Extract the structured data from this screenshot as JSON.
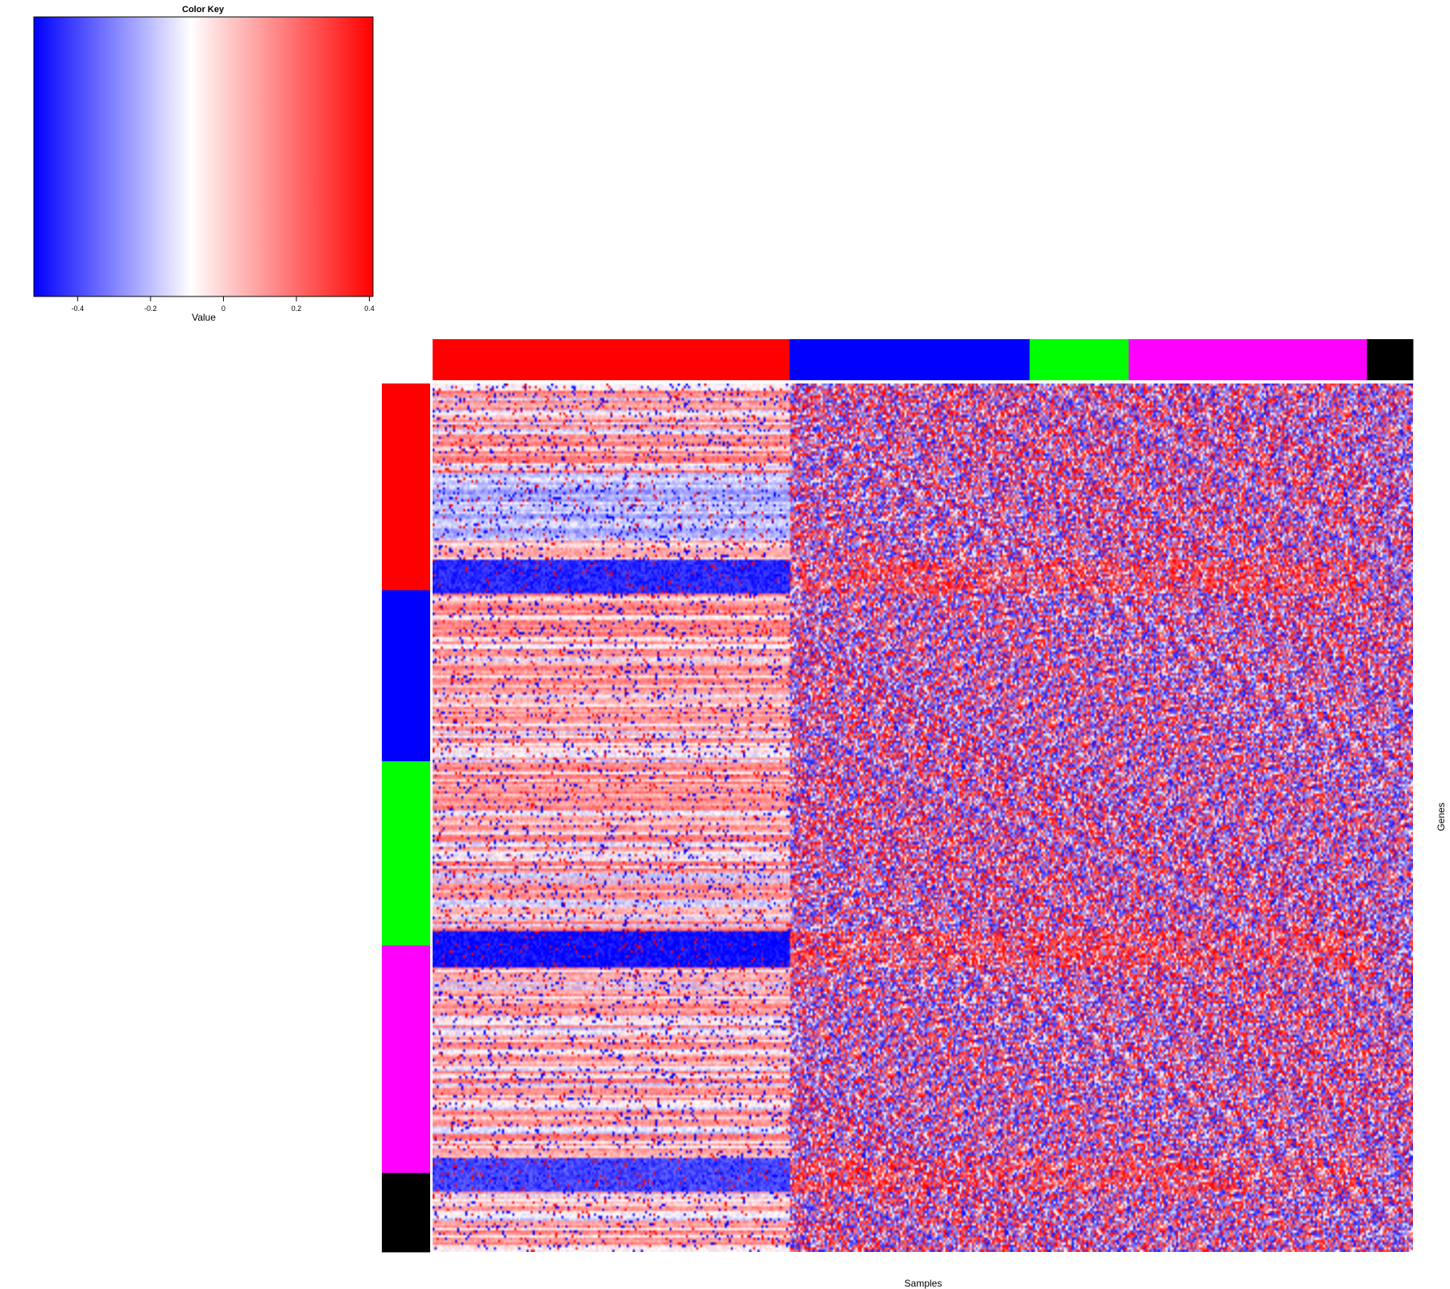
{
  "chart_data": {
    "type": "heatmap",
    "title": "",
    "xlabel": "Samples",
    "ylabel": "Genes",
    "color_key": {
      "title": "Color Key",
      "label": "Value",
      "range": [
        -0.52,
        0.41
      ],
      "ticks": [
        {
          "value": -0.4,
          "label": "-0.4"
        },
        {
          "value": -0.2,
          "label": "-0.2"
        },
        {
          "value": 0,
          "label": "0"
        },
        {
          "value": 0.2,
          "label": "0.2"
        },
        {
          "value": 0.4,
          "label": "0.4"
        }
      ],
      "colors": {
        "low": "#0000ff",
        "mid": "#ffffff",
        "high": "#ff0000"
      },
      "midpoint": -0.09
    },
    "column_groups": [
      {
        "color": "#ff0000",
        "fraction": 0.364
      },
      {
        "color": "#0000ff",
        "fraction": 0.245
      },
      {
        "color": "#00ff00",
        "fraction": 0.101
      },
      {
        "color": "#ff00ff",
        "fraction": 0.243
      },
      {
        "color": "#000000",
        "fraction": 0.047
      }
    ],
    "row_groups": [
      {
        "color": "#ff0000",
        "fraction": 0.238
      },
      {
        "color": "#0000ff",
        "fraction": 0.197
      },
      {
        "color": "#00ff00",
        "fraction": 0.212
      },
      {
        "color": "#ff00ff",
        "fraction": 0.262
      },
      {
        "color": "#000000",
        "fraction": 0.091
      }
    ]
  }
}
